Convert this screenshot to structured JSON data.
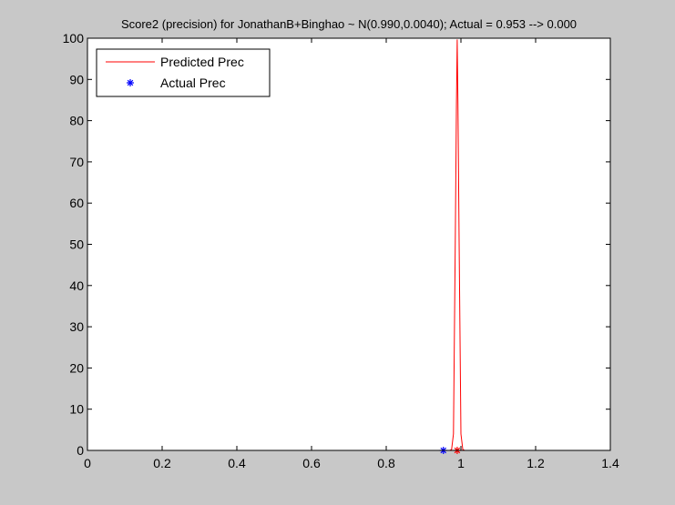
{
  "colors": {
    "figure_background": "#c8c8c8",
    "axes_background": "#ffffff",
    "predicted_line": "#ff0000",
    "actual_marker": "#0000ff",
    "axis": "#000000"
  },
  "chart_data": {
    "type": "line",
    "title": "Score2 (precision) for JonathanB+Binghao ~ N(0.990,0.0040); Actual = 0.953 --> 0.000",
    "xlabel": "",
    "ylabel": "",
    "xlim": [
      0,
      1.4
    ],
    "ylim": [
      0,
      100
    ],
    "xticks": [
      0,
      0.2,
      0.4,
      0.6,
      0.8,
      1,
      1.2,
      1.4
    ],
    "xtick_labels": [
      "0",
      "0.2",
      "0.4",
      "0.6",
      "0.8",
      "1",
      "1.2",
      "1.4"
    ],
    "yticks": [
      0,
      10,
      20,
      30,
      40,
      50,
      60,
      70,
      80,
      90,
      100
    ],
    "ytick_labels": [
      "0",
      "10",
      "20",
      "30",
      "40",
      "50",
      "60",
      "70",
      "80",
      "90",
      "100"
    ],
    "grid": false,
    "legend_position": "top-left",
    "series": [
      {
        "name": "Predicted Prec",
        "kind": "line",
        "color": "#ff0000",
        "x": [
          0,
          0.97,
          0.975,
          0.98,
          0.985,
          0.988,
          0.99,
          0.992,
          0.995,
          1.0,
          1.005,
          1.01,
          1.3
        ],
        "y": [
          0,
          0,
          0.2,
          4,
          52,
          84,
          99.7,
          84,
          52,
          4,
          0.2,
          0,
          0
        ]
      },
      {
        "name": "Actual Prec",
        "kind": "marker",
        "marker": "*",
        "color": "#0000ff",
        "x": [
          0.953
        ],
        "y": [
          0
        ]
      },
      {
        "name": "",
        "kind": "marker",
        "marker": "*",
        "color": "#ff0000",
        "x": [
          0.99
        ],
        "y": [
          0
        ]
      }
    ],
    "legend": [
      {
        "label": "Predicted Prec",
        "type": "line",
        "color": "#ff0000"
      },
      {
        "label": "Actual Prec",
        "type": "marker",
        "color": "#0000ff"
      }
    ]
  }
}
